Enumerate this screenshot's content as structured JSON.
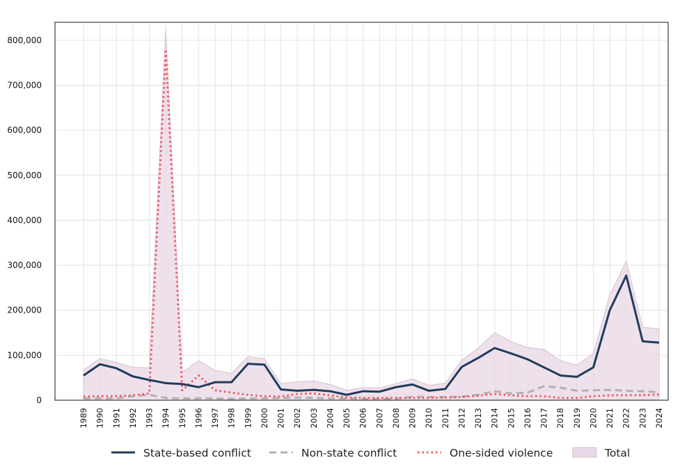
{
  "chart_data": {
    "type": "line",
    "title": "",
    "xlabel": "",
    "ylabel": "",
    "x": [
      1989,
      1990,
      1991,
      1992,
      1993,
      1994,
      1995,
      1996,
      1997,
      1998,
      1999,
      2000,
      2001,
      2002,
      2003,
      2004,
      2005,
      2006,
      2007,
      2008,
      2009,
      2010,
      2011,
      2012,
      2013,
      2014,
      2015,
      2016,
      2017,
      2018,
      2019,
      2020,
      2021,
      2022,
      2023,
      2024
    ],
    "x_labels": [
      "1989",
      "1990",
      "1991",
      "1992",
      "1993",
      "1994",
      "1995",
      "1996",
      "1997",
      "1998",
      "1999",
      "2000",
      "2001",
      "2002",
      "2003",
      "2004",
      "2005",
      "2006",
      "2007",
      "2008",
      "2009",
      "2010",
      "2011",
      "2012",
      "2013",
      "2014",
      "2015",
      "2016",
      "2017",
      "2018",
      "2019",
      "2020",
      "2021",
      "2022",
      "2023",
      "2024"
    ],
    "ylim": [
      0,
      840000
    ],
    "y_ticks": [
      0,
      100000,
      200000,
      300000,
      400000,
      500000,
      600000,
      700000,
      800000
    ],
    "y_tick_labels": [
      "0",
      "100,000",
      "200,000",
      "300,000",
      "400,000",
      "500,000",
      "600,000",
      "700,000",
      "800,000"
    ],
    "grid": true,
    "legend_position": "bottom",
    "series": [
      {
        "name": "State-based conflict",
        "style": "solid",
        "color": "#1f3a5c",
        "values": [
          55000,
          80000,
          71000,
          53000,
          45000,
          38000,
          36000,
          29000,
          40000,
          40000,
          81000,
          79000,
          24000,
          21000,
          23000,
          20000,
          12000,
          20000,
          19000,
          29000,
          35000,
          21000,
          25000,
          74000,
          94000,
          116000,
          104000,
          91000,
          73000,
          55000,
          52000,
          73000,
          200000,
          277000,
          131000,
          128000
        ]
      },
      {
        "name": "Non-state conflict",
        "style": "dashed",
        "color": "#b4b0ac",
        "values": [
          4000,
          4000,
          4000,
          9000,
          12000,
          5000,
          4000,
          4000,
          4000,
          3000,
          4000,
          4000,
          5000,
          6000,
          5000,
          4000,
          4000,
          3000,
          3000,
          3000,
          8000,
          7000,
          7000,
          8000,
          12000,
          20000,
          15000,
          17000,
          31000,
          28000,
          21000,
          22000,
          23000,
          21000,
          20000,
          18000
        ]
      },
      {
        "name": "One-sided violence",
        "style": "dotted",
        "color": "#f05a5e",
        "values": [
          8000,
          9000,
          9000,
          11000,
          15000,
          780000,
          22000,
          55000,
          22000,
          17000,
          12000,
          9000,
          8000,
          14000,
          15000,
          11000,
          6000,
          5000,
          5000,
          5000,
          5000,
          5000,
          6000,
          7000,
          10000,
          14000,
          11000,
          9000,
          9000,
          5000,
          5000,
          9000,
          11000,
          11000,
          11000,
          13000
        ]
      },
      {
        "name": "Total",
        "style": "area",
        "color": "#e8d7e4",
        "values": [
          67000,
          93000,
          84000,
          73000,
          72000,
          823000,
          62000,
          88000,
          66000,
          60000,
          97000,
          92000,
          37000,
          41000,
          43000,
          35000,
          22000,
          28000,
          27000,
          37000,
          48000,
          33000,
          38000,
          89000,
          116000,
          150000,
          130000,
          117000,
          113000,
          88000,
          78000,
          104000,
          234000,
          309000,
          162000,
          159000
        ]
      }
    ]
  }
}
